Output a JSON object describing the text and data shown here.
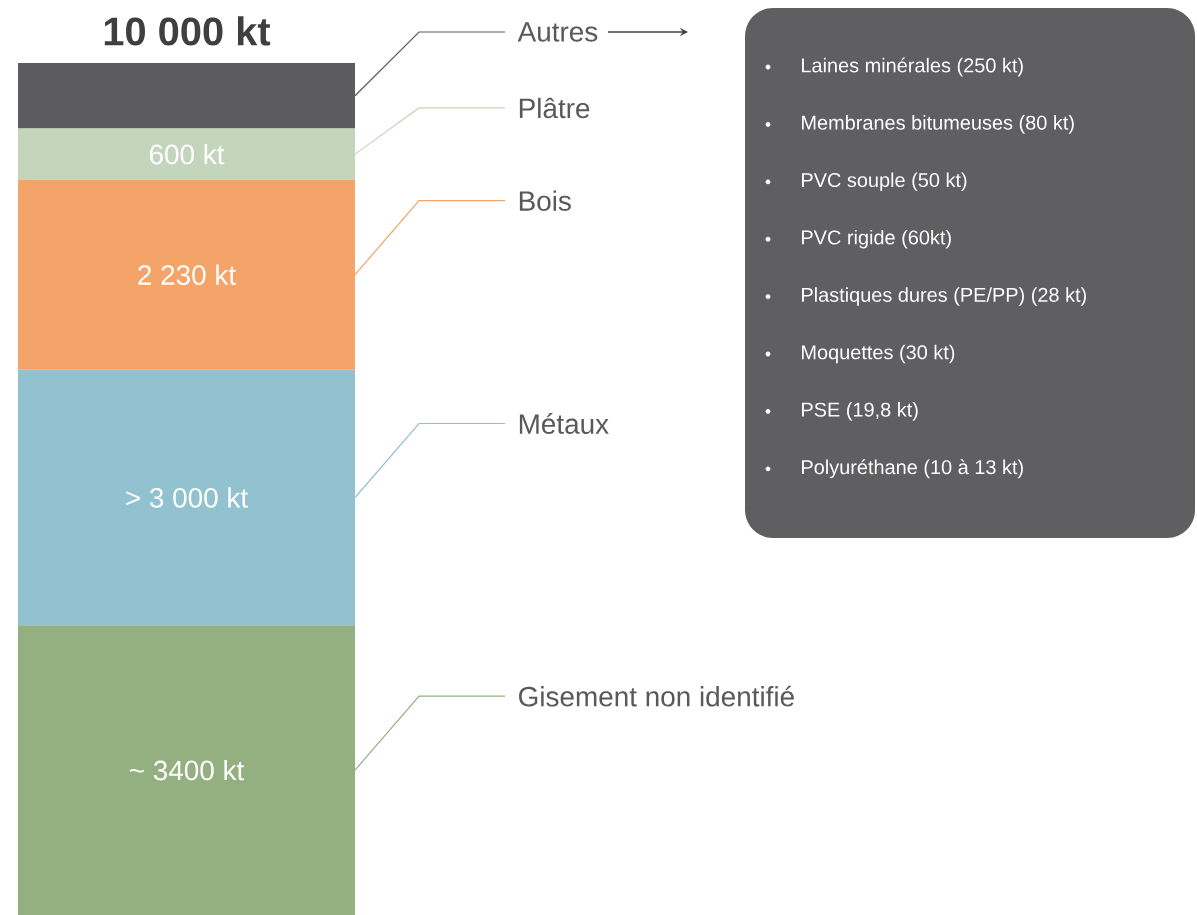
{
  "chart_data": {
    "type": "bar",
    "stacked": true,
    "categories": [
      null
    ],
    "legend": false,
    "series": [
      {
        "name": "Gisement non identifié",
        "color": "#94b080",
        "values": [
          3400
        ],
        "value_labels": [
          "~ 3400 kt"
        ]
      },
      {
        "name": "Métaux",
        "color": "#92c2cf",
        "values": [
          3000
        ],
        "value_labels": [
          "> 3 000 kt"
        ]
      },
      {
        "name": "Bois",
        "color": "#f4a468",
        "values": [
          2230
        ],
        "value_labels": [
          "2 230 kt"
        ]
      },
      {
        "name": "Plâtre",
        "color": "#c3d6bc",
        "values": [
          600
        ],
        "value_labels": [
          "600 kt"
        ]
      },
      {
        "name": "Autres",
        "color": "#5c5c5e",
        "values": [
          770
        ],
        "value_labels": [
          null
        ]
      }
    ],
    "totals": [
      "10 000 kt"
    ],
    "annotations": [
      "Laines minérales (250 kt)",
      "Membranes bitumeuses (80 kt)",
      "PVC souple (50 kt)",
      "PVC rigide (60kt)",
      "Plastiques dures (PE/PP) (28 kt)",
      "Moquettes (30 kt)",
      "PSE (19,8 kt)",
      "Polyuréthane (10 à 13 kt)"
    ]
  }
}
